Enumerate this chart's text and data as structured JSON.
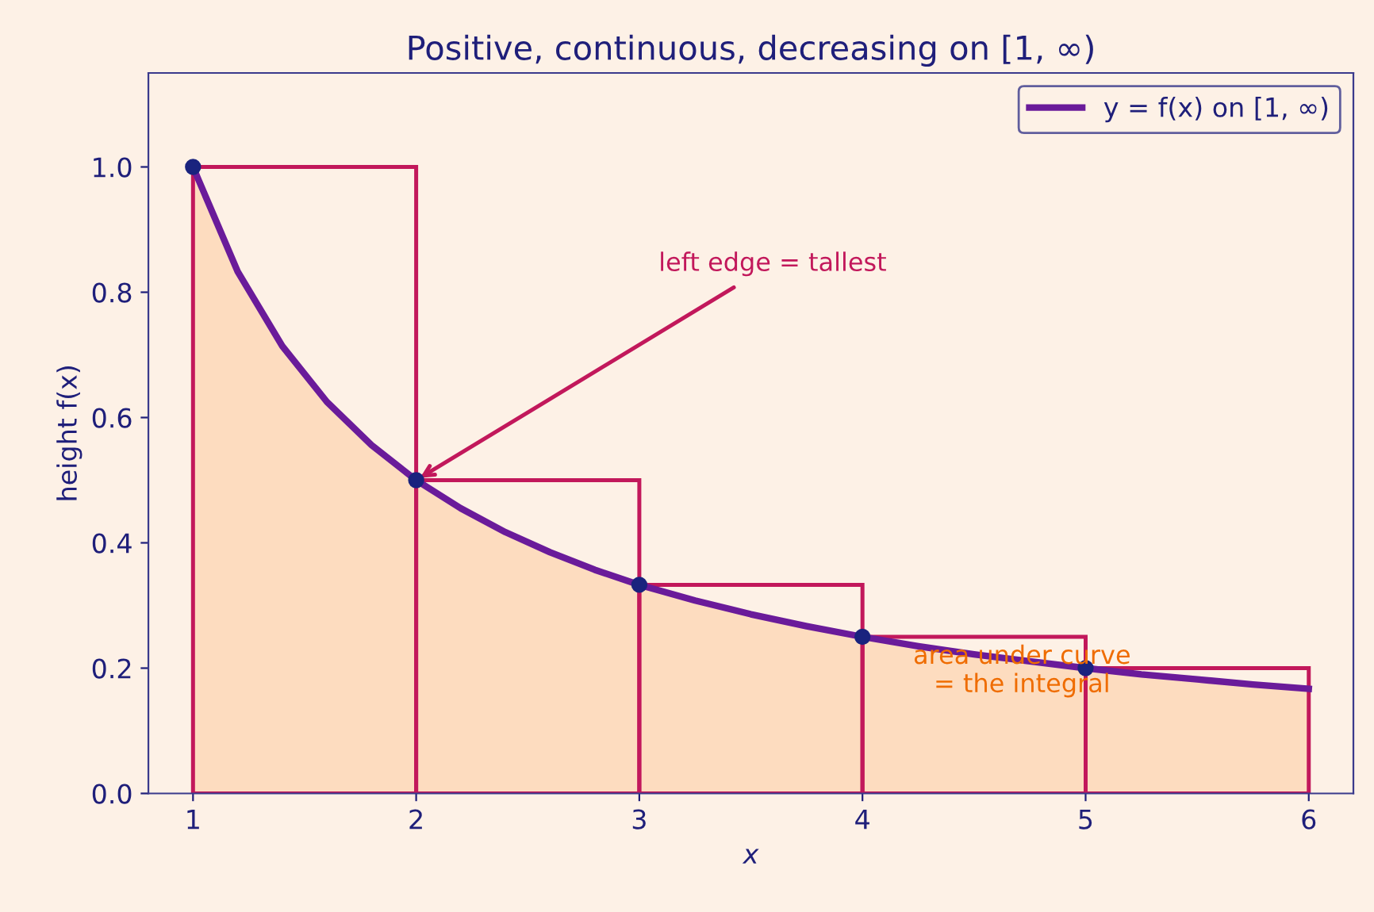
{
  "chart_data": {
    "type": "line",
    "title": "Positive, continuous, decreasing on [1, ∞)",
    "xlabel": "x",
    "ylabel": "height f(x)",
    "xlim": [
      0.8,
      6.2
    ],
    "ylim": [
      0,
      1.15
    ],
    "xticks": [
      1,
      2,
      3,
      4,
      5,
      6
    ],
    "yticks": [
      {
        "value": 0,
        "label": "0.0"
      },
      {
        "value": 0.2,
        "label": "0.2"
      },
      {
        "value": 0.4,
        "label": "0.4"
      },
      {
        "value": 0.6,
        "label": "0.6"
      },
      {
        "value": 0.8,
        "label": "0.8"
      },
      {
        "value": 1.0,
        "label": "1.0"
      }
    ],
    "grid": false,
    "legend": "top right",
    "series": [
      {
        "type": "area",
        "color": "#fddcbf",
        "x": [
          1,
          1.2,
          1.4,
          1.6,
          1.8,
          2,
          2.2,
          2.4,
          2.6,
          2.8,
          3,
          3.25,
          3.5,
          3.75,
          4,
          4.25,
          4.5,
          4.75,
          5,
          5.25,
          5.5,
          5.75,
          6
        ],
        "values": [
          1,
          0.833,
          0.714,
          0.625,
          0.556,
          0.5,
          0.455,
          0.417,
          0.385,
          0.357,
          0.333,
          0.308,
          0.286,
          0.267,
          0.25,
          0.235,
          0.222,
          0.211,
          0.2,
          0.19,
          0.182,
          0.174,
          0.167
        ]
      },
      {
        "type": "bar",
        "color": "#c2185b",
        "x": [
          1.5,
          2.5,
          3.5,
          4.5,
          5.5
        ],
        "values": [
          1,
          0.5,
          0.333,
          0.25,
          0.2
        ]
      },
      {
        "name": "y = f(x) on [1, ∞)",
        "color": "#6a1b9a",
        "x": [
          1,
          1.2,
          1.4,
          1.6,
          1.8,
          2,
          2.2,
          2.4,
          2.6,
          2.8,
          3,
          3.25,
          3.5,
          3.75,
          4,
          4.25,
          4.5,
          4.75,
          5,
          5.25,
          5.5,
          5.75,
          6
        ],
        "values": [
          1,
          0.833,
          0.714,
          0.625,
          0.556,
          0.5,
          0.455,
          0.417,
          0.385,
          0.357,
          0.333,
          0.308,
          0.286,
          0.267,
          0.25,
          0.235,
          0.222,
          0.211,
          0.2,
          0.19,
          0.182,
          0.174,
          0.167
        ]
      },
      {
        "type": "scatter",
        "color": "#1a237e",
        "x": [
          1,
          2,
          3,
          4,
          5
        ],
        "values": [
          1,
          0.5,
          0.333,
          0.25,
          0.2
        ]
      }
    ],
    "annotations": [
      {
        "text": "left edge = tallest",
        "x": 2,
        "y": 0.5
      },
      "area under curve\n= the integral"
    ]
  }
}
